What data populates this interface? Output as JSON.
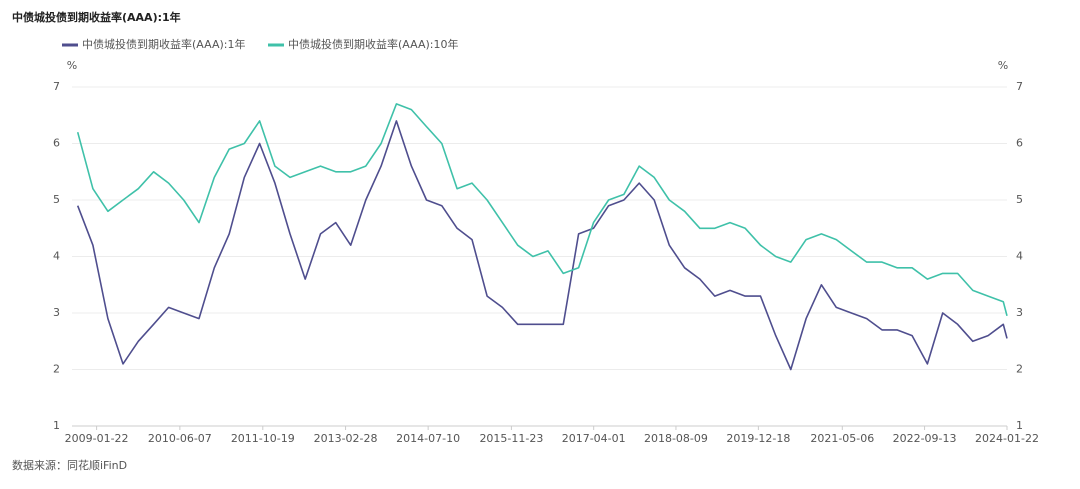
{
  "chart_data": {
    "type": "line",
    "title": "中债城投债到期收益率(AAA):1年",
    "source": "数据来源：同花顺iFinD",
    "y_unit": "%",
    "y2_unit": "%",
    "x": [
      "2008-09-30",
      "2008-12-31",
      "2009-03-31",
      "2009-06-30",
      "2009-09-30",
      "2009-12-31",
      "2010-03-31",
      "2010-06-30",
      "2010-09-30",
      "2010-12-31",
      "2011-03-31",
      "2011-06-30",
      "2011-09-30",
      "2011-12-31",
      "2012-03-31",
      "2012-06-30",
      "2012-09-30",
      "2012-12-31",
      "2013-03-31",
      "2013-06-30",
      "2013-09-30",
      "2013-12-31",
      "2014-03-31",
      "2014-06-30",
      "2014-09-30",
      "2014-12-31",
      "2015-03-31",
      "2015-06-30",
      "2015-09-30",
      "2015-12-31",
      "2016-03-31",
      "2016-06-30",
      "2016-09-30",
      "2016-12-31",
      "2017-03-31",
      "2017-06-30",
      "2017-09-30",
      "2017-12-31",
      "2018-03-31",
      "2018-06-30",
      "2018-09-30",
      "2018-12-31",
      "2019-03-31",
      "2019-06-30",
      "2019-09-30",
      "2019-12-31",
      "2020-03-31",
      "2020-06-30",
      "2020-09-30",
      "2020-12-31",
      "2021-03-31",
      "2021-06-30",
      "2021-09-30",
      "2021-12-31",
      "2022-03-31",
      "2022-06-30",
      "2022-09-30",
      "2022-12-31",
      "2023-03-31",
      "2023-06-30",
      "2023-09-30",
      "2023-12-31",
      "2024-01-22"
    ],
    "series": [
      {
        "name": "中债城投债到期收益率(AAA):1年",
        "color": "#4f4e8e",
        "values": [
          4.9,
          4.2,
          2.9,
          2.1,
          2.5,
          2.8,
          3.1,
          3.0,
          2.9,
          3.8,
          4.4,
          5.4,
          6.0,
          5.3,
          4.4,
          3.6,
          4.4,
          4.6,
          4.2,
          5.0,
          5.6,
          6.4,
          5.6,
          5.0,
          4.9,
          4.5,
          4.3,
          3.3,
          3.1,
          2.8,
          2.8,
          2.8,
          2.8,
          4.4,
          4.5,
          4.9,
          5.0,
          5.3,
          5.0,
          4.2,
          3.8,
          3.6,
          3.3,
          3.4,
          3.3,
          3.3,
          2.6,
          2.0,
          2.9,
          3.5,
          3.1,
          3.0,
          2.9,
          2.7,
          2.7,
          2.6,
          2.1,
          3.0,
          2.8,
          2.5,
          2.6,
          2.8,
          2.55
        ]
      },
      {
        "name": "中债城投债到期收益率(AAA):10年",
        "color": "#3fc1a9",
        "values": [
          6.2,
          5.2,
          4.8,
          5.0,
          5.2,
          5.5,
          5.3,
          5.0,
          4.6,
          5.4,
          5.9,
          6.0,
          6.4,
          5.6,
          5.4,
          5.5,
          5.6,
          5.5,
          5.5,
          5.6,
          6.0,
          6.7,
          6.6,
          6.3,
          6.0,
          5.2,
          5.3,
          5.0,
          4.6,
          4.2,
          4.0,
          4.1,
          3.7,
          3.8,
          4.6,
          5.0,
          5.1,
          5.6,
          5.4,
          5.0,
          4.8,
          4.5,
          4.5,
          4.6,
          4.5,
          4.2,
          4.0,
          3.9,
          4.3,
          4.4,
          4.3,
          4.1,
          3.9,
          3.9,
          3.8,
          3.8,
          3.6,
          3.7,
          3.7,
          3.4,
          3.3,
          3.2,
          2.95
        ]
      }
    ],
    "xlim": [
      "2008-08-27",
      "2024-01-22"
    ],
    "xticks": [
      "2009-01-22",
      "2010-06-07",
      "2011-10-19",
      "2013-02-28",
      "2014-07-10",
      "2015-11-23",
      "2017-04-01",
      "2018-08-09",
      "2019-12-18",
      "2021-05-06",
      "2022-09-13",
      "2024-01-22"
    ],
    "ylim": [
      1,
      7
    ],
    "yticks": [
      1,
      2,
      3,
      4,
      5,
      6,
      7
    ],
    "y2lim": [
      1,
      7
    ],
    "y2ticks": [
      1,
      2,
      3,
      4,
      5,
      6,
      7
    ],
    "grid": true,
    "legend": "top-left"
  }
}
